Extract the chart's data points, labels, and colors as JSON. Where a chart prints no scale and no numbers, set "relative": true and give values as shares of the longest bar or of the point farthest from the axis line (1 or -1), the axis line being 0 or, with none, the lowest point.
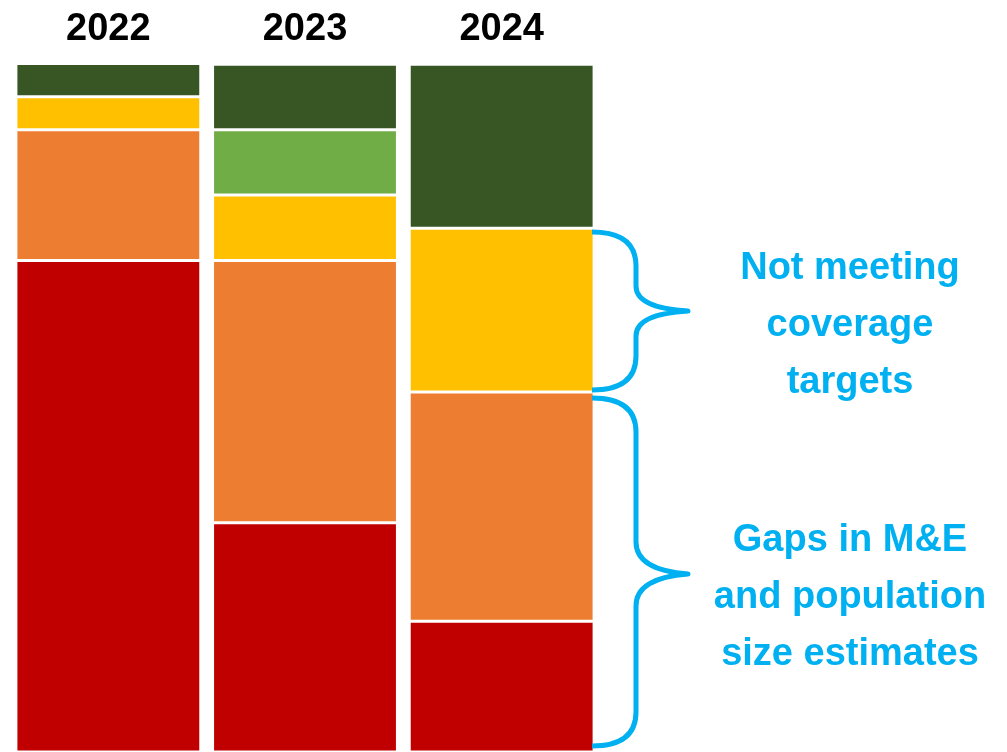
{
  "chart_data": {
    "type": "bar",
    "stacked": true,
    "relative": true,
    "categories": [
      "2022",
      "2023",
      "2024"
    ],
    "series": [
      {
        "color": "#c00000",
        "values": [
          0.714,
          0.333,
          0.19
        ]
      },
      {
        "color": "#ed7d31",
        "values": [
          0.19,
          0.381,
          0.333
        ]
      },
      {
        "color": "#ffc000",
        "values": [
          0.048,
          0.095,
          0.238
        ]
      },
      {
        "color": "#70ad47",
        "values": [
          0,
          0.095,
          0
        ]
      },
      {
        "color": "#375623",
        "values": [
          0.048,
          0.095,
          0.238
        ]
      }
    ],
    "annotations": [
      "Not meeting coverage targets",
      "Gaps in M&E and population size estimates"
    ]
  }
}
